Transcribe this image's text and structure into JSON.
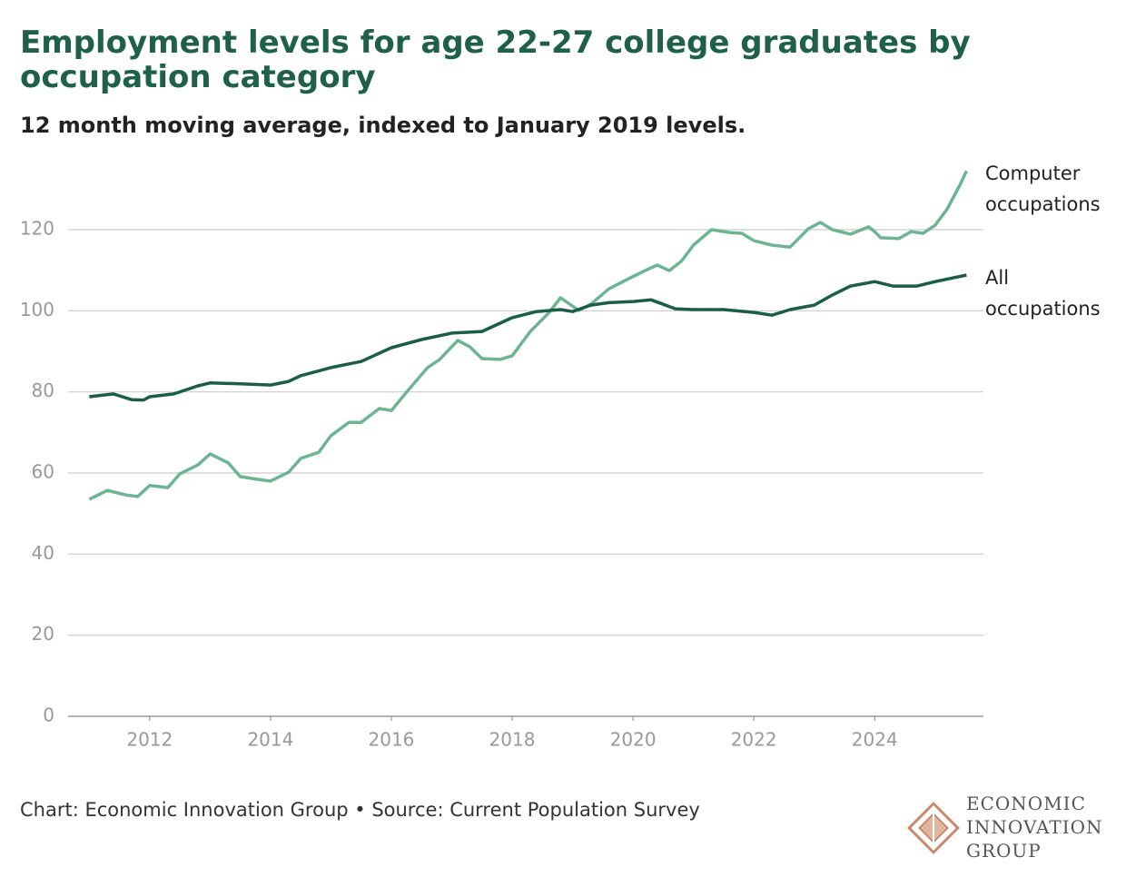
{
  "chart_data": {
    "type": "line",
    "title": "Employment levels for age 22-27 college graduates by occupation category",
    "subtitle": "12 month moving average, indexed to January 2019 levels.",
    "source": "Chart: Economic Innovation Group • Source: Current Population Survey",
    "logo": [
      "ECONOMIC",
      "INNOVATION",
      "GROUP"
    ],
    "xlim": [
      2010.65,
      2025.8
    ],
    "xticks": [
      2012,
      2014,
      2016,
      2018,
      2020,
      2022,
      2024
    ],
    "ylim": [
      0,
      135
    ],
    "yticks": [
      0,
      20,
      40,
      60,
      80,
      100,
      120
    ],
    "grid": true,
    "series": [
      {
        "name": "Computer occupations",
        "color": "#6db592",
        "x": [
          2011.0,
          2011.3,
          2011.6,
          2011.8,
          2012.0,
          2012.3,
          2012.5,
          2012.8,
          2013.0,
          2013.3,
          2013.5,
          2013.8,
          2014.0,
          2014.3,
          2014.5,
          2014.8,
          2015.0,
          2015.3,
          2015.5,
          2015.8,
          2016.0,
          2016.3,
          2016.6,
          2016.8,
          2017.1,
          2017.3,
          2017.5,
          2017.8,
          2018.0,
          2018.3,
          2018.6,
          2018.8,
          2019.1,
          2019.3,
          2019.6,
          2019.9,
          2020.2,
          2020.4,
          2020.6,
          2020.8,
          2021.0,
          2021.3,
          2021.6,
          2021.8,
          2022.0,
          2022.3,
          2022.6,
          2022.9,
          2023.1,
          2023.3,
          2023.6,
          2023.9,
          2024.0,
          2024.1,
          2024.4,
          2024.6,
          2024.8,
          2025.0,
          2025.2,
          2025.4,
          2025.52
        ],
        "values": [
          53.5,
          55.7,
          54.6,
          54.2,
          56.9,
          56.4,
          59.8,
          62,
          64.7,
          62.5,
          59.1,
          58.4,
          58,
          60.2,
          63.6,
          65.1,
          69.2,
          72.5,
          72.5,
          75.9,
          75.4,
          80.8,
          86,
          88,
          92.7,
          91.1,
          88.2,
          88,
          88.9,
          94.9,
          99.4,
          103.2,
          100.1,
          101.6,
          105.4,
          107.7,
          109.9,
          111.3,
          109.9,
          112.2,
          116.2,
          120,
          119.3,
          119.1,
          117.3,
          116.2,
          115.7,
          120.2,
          121.8,
          120,
          118.9,
          120.7,
          119.5,
          118,
          117.8,
          119.5,
          119.1,
          121.1,
          125.1,
          130.7,
          134.5
        ]
      },
      {
        "name": "All occupations",
        "color": "#1b5e45",
        "x": [
          2011.0,
          2011.4,
          2011.7,
          2011.9,
          2012.0,
          2012.4,
          2012.8,
          2013.0,
          2013.5,
          2014.0,
          2014.3,
          2014.5,
          2015.0,
          2015.3,
          2015.5,
          2016.0,
          2016.5,
          2017.0,
          2017.5,
          2018.0,
          2018.4,
          2018.8,
          2019.0,
          2019.3,
          2019.6,
          2020.0,
          2020.3,
          2020.5,
          2020.7,
          2021.0,
          2021.5,
          2022.0,
          2022.3,
          2022.6,
          2023.0,
          2023.3,
          2023.6,
          2024.0,
          2024.3,
          2024.7,
          2025.0,
          2025.52
        ],
        "values": [
          78.8,
          79.5,
          78.1,
          78,
          78.8,
          79.5,
          81.5,
          82.2,
          82,
          81.7,
          82.6,
          84,
          86,
          86.9,
          87.5,
          90.9,
          92.9,
          94.5,
          94.9,
          98.3,
          99.8,
          100.3,
          99.8,
          101.4,
          102,
          102.3,
          102.7,
          101.6,
          100.5,
          100.3,
          100.3,
          99.6,
          98.9,
          100.3,
          101.4,
          103.9,
          106.1,
          107.2,
          106.1,
          106.1,
          107.2,
          108.8
        ]
      }
    ]
  }
}
